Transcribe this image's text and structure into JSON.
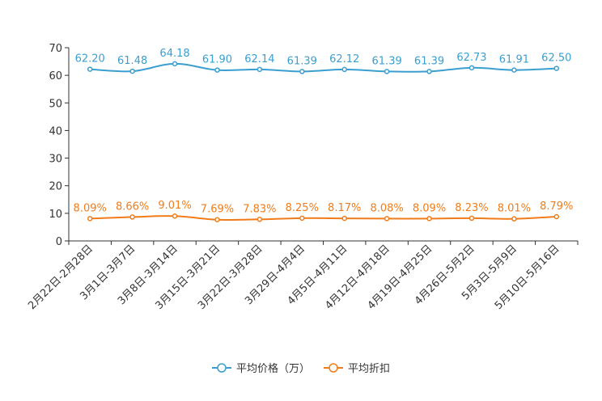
{
  "chart_data": {
    "type": "line",
    "categories": [
      "2月22日-2月28日",
      "3月1日-3月7日",
      "3月8日-3月14日",
      "3月15日-3月21日",
      "3月22日-3月28日",
      "3月29日-4月4日",
      "4月5日-4月11日",
      "4月12日-4月18日",
      "4月19日-4月25日",
      "4月26日-5月2日",
      "5月3日-5月9日",
      "5月10日-5月16日"
    ],
    "ylim": [
      0,
      70
    ],
    "yticks": [
      0,
      10,
      20,
      30,
      40,
      50,
      60,
      70
    ],
    "series": [
      {
        "name": "平均价格（万）",
        "color": "#3a9fd0",
        "values": [
          62.2,
          61.48,
          64.18,
          61.9,
          62.14,
          61.39,
          62.12,
          61.39,
          61.39,
          62.73,
          61.91,
          62.5
        ],
        "labels": [
          "62.20",
          "61.48",
          "64.18",
          "61.90",
          "62.14",
          "61.39",
          "62.12",
          "61.39",
          "61.39",
          "62.73",
          "61.91",
          "62.50"
        ]
      },
      {
        "name": "平均折扣",
        "color": "#f07c1a",
        "values": [
          8.09,
          8.66,
          9.01,
          7.69,
          7.83,
          8.25,
          8.17,
          8.08,
          8.09,
          8.23,
          8.01,
          8.79
        ],
        "labels": [
          "8.09%",
          "8.66%",
          "9.01%",
          "7.69%",
          "7.83%",
          "8.25%",
          "8.17%",
          "8.08%",
          "8.09%",
          "8.23%",
          "8.01%",
          "8.79%"
        ]
      }
    ]
  }
}
